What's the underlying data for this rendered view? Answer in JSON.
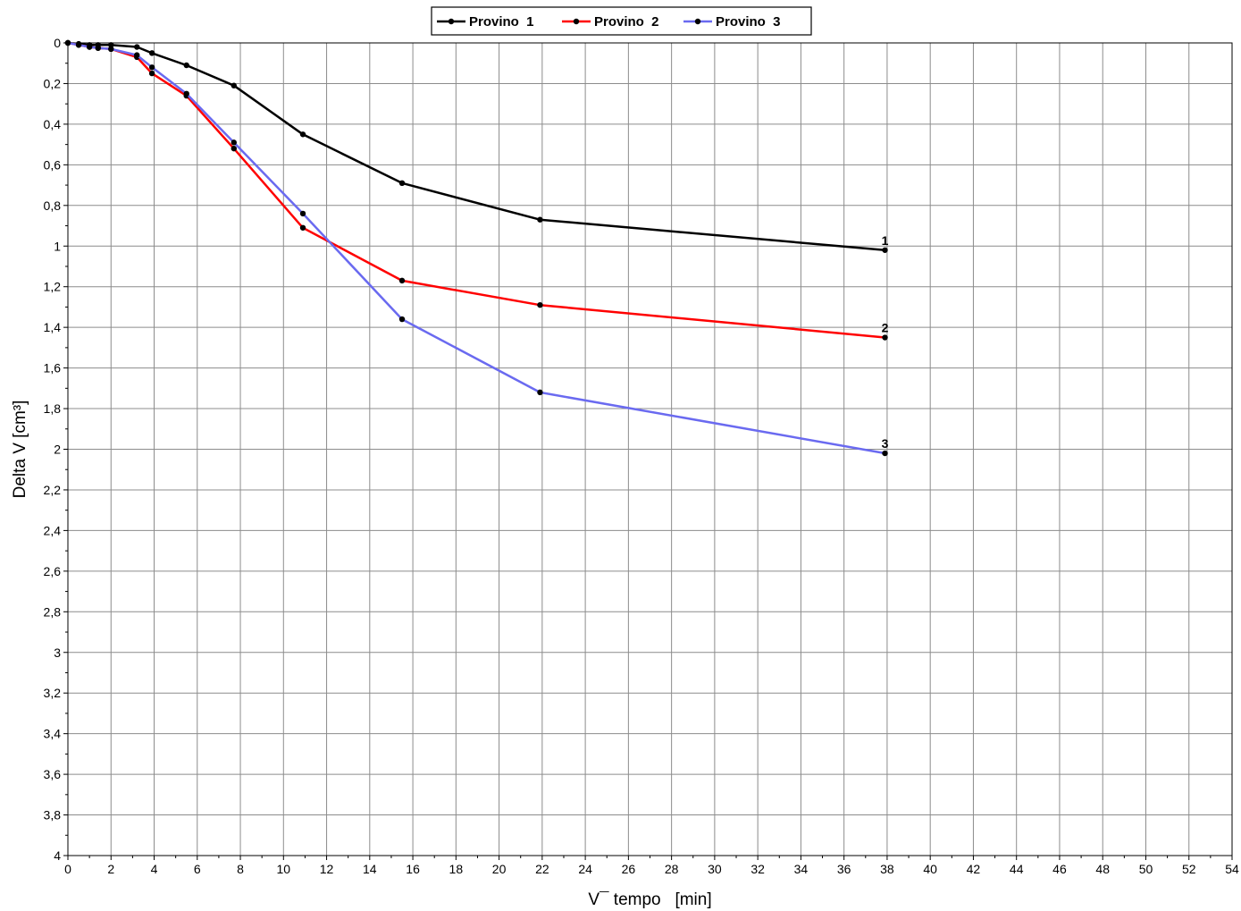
{
  "chart_data": {
    "type": "line",
    "title": "",
    "xlabel": "V¯ tempo   [min]",
    "ylabel": "Delta V [cm³]",
    "xlim": [
      0,
      54
    ],
    "ylim": [
      0,
      4
    ],
    "y_inverted": true,
    "x_ticks": [
      "0",
      "2",
      "4",
      "6",
      "8",
      "10",
      "12",
      "14",
      "16",
      "18",
      "20",
      "22",
      "24",
      "26",
      "28",
      "30",
      "32",
      "34",
      "36",
      "38",
      "40",
      "42",
      "44",
      "46",
      "48",
      "50",
      "52",
      "54"
    ],
    "y_ticks": [
      "0",
      "0,2",
      "0,4",
      "0,6",
      "0,8",
      "1",
      "1,2",
      "1,4",
      "1,6",
      "1,8",
      "2",
      "2,2",
      "2,4",
      "2,6",
      "2,8",
      "3",
      "3,2",
      "3,4",
      "3,6",
      "3,8",
      "4"
    ],
    "grid": true,
    "legend_position": "top-center",
    "series": [
      {
        "name": "Provino  1",
        "color": "#000000",
        "end_label": "1",
        "x": [
          0,
          0.5,
          1,
          1.4,
          2,
          3.2,
          3.9,
          5.5,
          7.7,
          10.9,
          15.5,
          21.9,
          37.9
        ],
        "y": [
          0,
          0.005,
          0.01,
          0.01,
          0.01,
          0.02,
          0.05,
          0.11,
          0.21,
          0.45,
          0.69,
          0.87,
          1.02
        ]
      },
      {
        "name": "Provino  2",
        "color": "#ff0000",
        "end_label": "2",
        "x": [
          0,
          0.5,
          1,
          1.4,
          2,
          3.2,
          3.9,
          5.5,
          7.7,
          10.9,
          15.5,
          21.9,
          37.9
        ],
        "y": [
          0,
          0.01,
          0.02,
          0.025,
          0.03,
          0.07,
          0.15,
          0.26,
          0.52,
          0.91,
          1.17,
          1.29,
          1.45
        ]
      },
      {
        "name": "Provino  3",
        "color": "#6a6af0",
        "end_label": "3",
        "x": [
          0,
          0.5,
          1,
          1.4,
          2,
          3.2,
          3.9,
          5.5,
          7.7,
          10.9,
          15.5,
          21.9,
          37.9
        ],
        "y": [
          0,
          0.01,
          0.02,
          0.025,
          0.03,
          0.06,
          0.12,
          0.25,
          0.49,
          0.84,
          1.36,
          1.72,
          2.02
        ]
      }
    ]
  }
}
